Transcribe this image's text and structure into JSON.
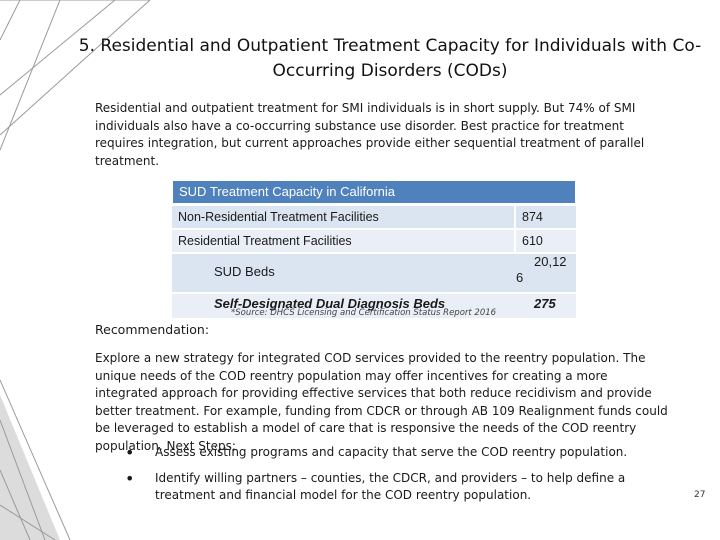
{
  "slide": {
    "title": "5. Residential and Outpatient Treatment Capacity for Individuals with Co-Occurring Disorders (CODs)",
    "intro": "Residential and outpatient treatment for SMI individuals is in short supply.  But 74% of SMI individuals also have a co-occurring substance use disorder.  Best practice for treatment requires integration, but current approaches provide either sequential treatment of parallel treatment.",
    "table": {
      "header": "SUD Treatment Capacity in California",
      "rows": [
        {
          "label": "Non-Residential Treatment Facilities",
          "value": "874"
        },
        {
          "label": "Residential Treatment Facilities",
          "value": "610"
        },
        {
          "label": "SUD Beds",
          "value_a": "20,12",
          "value_b": "6"
        },
        {
          "label": "Self-Designated Dual Diagnosis Beds",
          "value": "275"
        }
      ],
      "source": "*Source: DHCS Licensing and Certification Status Report 2016"
    },
    "recommendation_title": "Recommendation:",
    "recommendation_body": "Explore a new strategy for integrated COD services provided to the reentry population. The unique needs of the COD reentry population may offer incentives for creating a more integrated approach for providing effective services that both reduce recidivism and provide better treatment. For example, funding from CDCR or through AB 109 Realignment funds could be leveraged to establish a model of care that is responsive the needs of the COD reentry population. Next Steps:",
    "bullets": [
      "Assess existing programs and capacity that serve the COD reentry population.",
      "Identify willing partners – counties, the CDCR, and providers – to help define a treatment and financial model for the COD reentry population."
    ],
    "bullet_glyph": "•",
    "page_number": "27",
    "colors": {
      "header_bg": "#4f81bd",
      "row_dark": "#dbe5f1",
      "row_light": "#e9eef7",
      "decor_lines": "#8c8c8c"
    }
  }
}
